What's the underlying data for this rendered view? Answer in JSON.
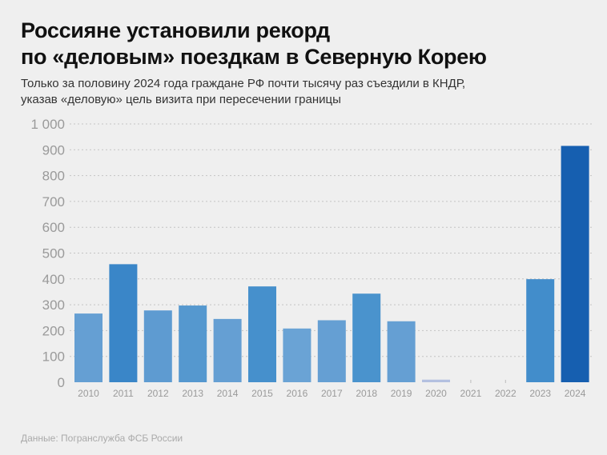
{
  "title_line1": "Россияне установили рекорд",
  "title_line2": "по «деловым» поездкам в Северную Корею",
  "subtitle_line1": "Только за половину 2024 года граждане РФ почти тысячу раз съездили в КНДР,",
  "subtitle_line2": "указав «деловую» цель визита при пересечении границы",
  "source": "Данные: Погранслужба ФСБ России",
  "chart_data": {
    "type": "bar",
    "title": "",
    "xlabel": "",
    "ylabel": "",
    "ylim": [
      0,
      1000
    ],
    "yticks": [
      "0",
      "100",
      "200",
      "300",
      "400",
      "500",
      "600",
      "700",
      "800",
      "900",
      "1 000"
    ],
    "grid": true,
    "categories": [
      "2010",
      "2011",
      "2012",
      "2013",
      "2014",
      "2015",
      "2016",
      "2017",
      "2018",
      "2019",
      "2020",
      "2021",
      "2022",
      "2023",
      "2024"
    ],
    "values": [
      266,
      457,
      278,
      297,
      245,
      371,
      208,
      240,
      343,
      236,
      10,
      0,
      0,
      399,
      915
    ],
    "colors": [
      "#659fd3",
      "#3a86c8",
      "#5e9bd1",
      "#5598cf",
      "#659fd3",
      "#4690cc",
      "#6aa3d5",
      "#659fd3",
      "#4a93cd",
      "#659fd3",
      "#b3c0e0",
      "#659fd3",
      "#659fd3",
      "#428dcb",
      "#165fb0"
    ]
  }
}
